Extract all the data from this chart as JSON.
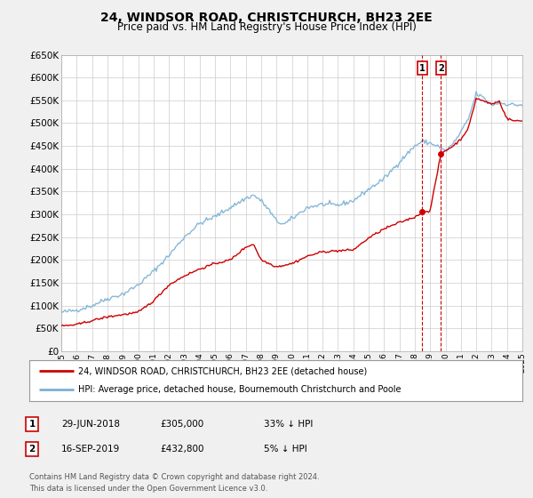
{
  "title": "24, WINDSOR ROAD, CHRISTCHURCH, BH23 2EE",
  "subtitle": "Price paid vs. HM Land Registry's House Price Index (HPI)",
  "legend_line1": "24, WINDSOR ROAD, CHRISTCHURCH, BH23 2EE (detached house)",
  "legend_line2": "HPI: Average price, detached house, Bournemouth Christchurch and Poole",
  "transaction1_date": "29-JUN-2018",
  "transaction1_price": "£305,000",
  "transaction1_hpi": "33% ↓ HPI",
  "transaction1_year": 2018.496,
  "transaction1_value": 305000,
  "transaction2_date": "16-SEP-2019",
  "transaction2_price": "£432,800",
  "transaction2_hpi": "5% ↓ HPI",
  "transaction2_year": 2019.706,
  "transaction2_value": 432800,
  "footer1": "Contains HM Land Registry data © Crown copyright and database right 2024.",
  "footer2": "This data is licensed under the Open Government Licence v3.0.",
  "red_color": "#cc0000",
  "blue_color": "#7ab0d4",
  "background_color": "#f0f0f0",
  "plot_bg_color": "#ffffff",
  "grid_color": "#cccccc",
  "ylim": [
    0,
    650000
  ],
  "xlim_start": 1995,
  "xlim_end": 2025,
  "yticks": [
    0,
    50000,
    100000,
    150000,
    200000,
    250000,
    300000,
    350000,
    400000,
    450000,
    500000,
    550000,
    600000,
    650000
  ]
}
